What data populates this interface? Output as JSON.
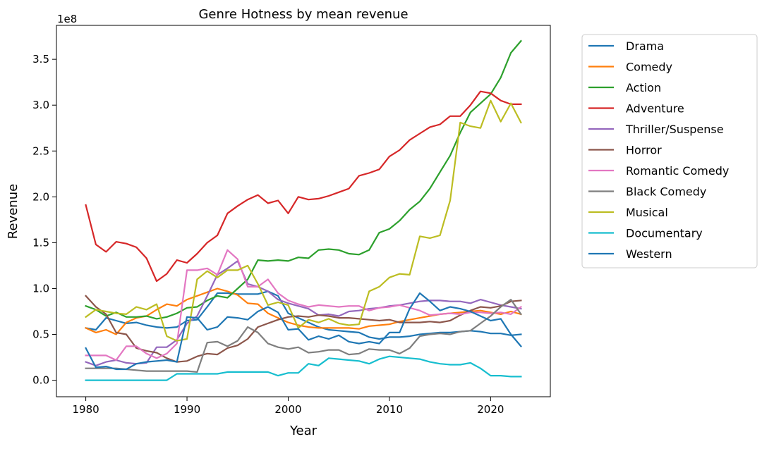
{
  "chart_data": {
    "type": "line",
    "title": "Genre Hotness by mean revenue",
    "xlabel": "Year",
    "ylabel": "Revenue",
    "y_offset_label": "1e8",
    "xlim": [
      1977.1,
      2025.9
    ],
    "ylim": [
      -0.18,
      3.87
    ],
    "x_ticks": [
      1980,
      1990,
      2000,
      2010,
      2020
    ],
    "x_tick_labels": [
      "1980",
      "1990",
      "2000",
      "2010",
      "2020"
    ],
    "y_ticks": [
      0.0,
      0.5,
      1.0,
      1.5,
      2.0,
      2.5,
      3.0,
      3.5
    ],
    "y_tick_labels": [
      "0.0",
      "0.5",
      "1.0",
      "1.5",
      "2.0",
      "2.5",
      "3.0",
      "3.5"
    ],
    "grid": false,
    "legend_position": "outside-right",
    "x": [
      1980,
      1981,
      1982,
      1983,
      1984,
      1985,
      1986,
      1987,
      1988,
      1989,
      1990,
      1991,
      1992,
      1993,
      1994,
      1995,
      1996,
      1997,
      1998,
      1999,
      2000,
      2001,
      2002,
      2003,
      2004,
      2005,
      2006,
      2007,
      2008,
      2009,
      2010,
      2011,
      2012,
      2013,
      2014,
      2015,
      2016,
      2017,
      2018,
      2019,
      2020,
      2021,
      2022,
      2023
    ],
    "series": [
      {
        "name": "Drama",
        "color": "#1f77b4",
        "values": [
          0.57,
          0.55,
          0.68,
          0.65,
          0.62,
          0.63,
          0.6,
          0.58,
          0.57,
          0.58,
          0.65,
          0.66,
          0.8,
          0.95,
          0.95,
          0.94,
          0.94,
          0.94,
          0.97,
          0.92,
          0.73,
          0.68,
          0.63,
          0.58,
          0.55,
          0.54,
          0.53,
          0.52,
          0.47,
          0.45,
          0.47,
          0.47,
          0.48,
          0.5,
          0.51,
          0.52,
          0.52,
          0.53,
          0.54,
          0.53,
          0.51,
          0.51,
          0.49,
          0.5
        ]
      },
      {
        "name": "Comedy",
        "color": "#ff7f0e",
        "values": [
          0.57,
          0.52,
          0.55,
          0.5,
          0.63,
          0.68,
          0.7,
          0.77,
          0.83,
          0.81,
          0.88,
          0.92,
          0.96,
          1.0,
          0.97,
          0.93,
          0.84,
          0.83,
          0.73,
          0.68,
          0.63,
          0.6,
          0.58,
          0.57,
          0.57,
          0.57,
          0.57,
          0.56,
          0.59,
          0.6,
          0.61,
          0.64,
          0.66,
          0.68,
          0.7,
          0.72,
          0.73,
          0.74,
          0.75,
          0.76,
          0.74,
          0.72,
          0.75,
          0.72
        ]
      },
      {
        "name": "Action",
        "color": "#2ca02c",
        "values": [
          0.81,
          0.77,
          0.7,
          0.74,
          0.69,
          0.69,
          0.7,
          0.67,
          0.69,
          0.73,
          0.79,
          0.8,
          0.87,
          0.92,
          0.9,
          1.0,
          1.1,
          1.31,
          1.3,
          1.31,
          1.3,
          1.34,
          1.33,
          1.42,
          1.43,
          1.42,
          1.38,
          1.37,
          1.42,
          1.61,
          1.65,
          1.74,
          1.86,
          1.95,
          2.09,
          2.27,
          2.45,
          2.7,
          2.92,
          3.02,
          3.12,
          3.3,
          3.57,
          3.7
        ]
      },
      {
        "name": "Adventure",
        "color": "#d62728",
        "values": [
          1.91,
          1.48,
          1.4,
          1.51,
          1.49,
          1.45,
          1.33,
          1.08,
          1.16,
          1.31,
          1.28,
          1.38,
          1.5,
          1.58,
          1.82,
          1.9,
          1.97,
          2.02,
          1.93,
          1.96,
          1.82,
          2.0,
          1.97,
          1.98,
          2.01,
          2.05,
          2.09,
          2.23,
          2.26,
          2.3,
          2.44,
          2.51,
          2.62,
          2.69,
          2.76,
          2.79,
          2.88,
          2.88,
          3.0,
          3.15,
          3.13,
          3.05,
          3.01,
          3.01
        ]
      },
      {
        "name": "Thriller/Suspense",
        "color": "#9467bd",
        "values": [
          0.2,
          0.16,
          0.2,
          0.22,
          0.19,
          0.18,
          0.19,
          0.36,
          0.36,
          0.44,
          0.62,
          0.7,
          0.92,
          1.15,
          1.22,
          1.3,
          1.05,
          1.02,
          0.97,
          0.88,
          0.84,
          0.81,
          0.78,
          0.71,
          0.72,
          0.7,
          0.75,
          0.76,
          0.78,
          0.79,
          0.81,
          0.82,
          0.84,
          0.86,
          0.87,
          0.87,
          0.86,
          0.86,
          0.84,
          0.88,
          0.85,
          0.82,
          0.8,
          0.78
        ]
      },
      {
        "name": "Horror",
        "color": "#8c564b",
        "values": [
          0.92,
          0.8,
          0.72,
          0.52,
          0.5,
          0.35,
          0.32,
          0.3,
          0.24,
          0.2,
          0.21,
          0.26,
          0.29,
          0.28,
          0.35,
          0.38,
          0.45,
          0.58,
          0.62,
          0.66,
          0.69,
          0.7,
          0.69,
          0.71,
          0.7,
          0.68,
          0.68,
          0.67,
          0.66,
          0.65,
          0.66,
          0.63,
          0.63,
          0.63,
          0.64,
          0.63,
          0.65,
          0.71,
          0.76,
          0.8,
          0.79,
          0.81,
          0.86,
          0.87
        ]
      },
      {
        "name": "Romantic Comedy",
        "color": "#e377c2",
        "values": [
          0.27,
          0.27,
          0.27,
          0.22,
          0.37,
          0.37,
          0.29,
          0.24,
          0.29,
          0.4,
          1.2,
          1.2,
          1.22,
          1.15,
          1.42,
          1.32,
          1.02,
          1.02,
          1.1,
          0.95,
          0.87,
          0.83,
          0.8,
          0.82,
          0.81,
          0.8,
          0.81,
          0.81,
          0.76,
          0.79,
          0.8,
          0.82,
          0.79,
          0.76,
          0.71,
          0.72,
          0.73,
          0.72,
          0.74,
          0.74,
          0.73,
          0.74,
          0.72,
          0.8
        ]
      },
      {
        "name": "Black Comedy",
        "color": "#7f7f7f",
        "values": [
          0.13,
          0.13,
          0.13,
          0.13,
          0.12,
          0.11,
          0.1,
          0.1,
          0.1,
          0.1,
          0.1,
          0.09,
          0.41,
          0.42,
          0.37,
          0.43,
          0.58,
          0.52,
          0.4,
          0.36,
          0.34,
          0.36,
          0.3,
          0.31,
          0.33,
          0.33,
          0.28,
          0.29,
          0.34,
          0.33,
          0.33,
          0.29,
          0.35,
          0.48,
          0.5,
          0.51,
          0.5,
          0.53,
          0.54,
          0.62,
          0.7,
          0.8,
          0.88,
          0.72
        ]
      },
      {
        "name": "Musical",
        "color": "#bcbd22",
        "values": [
          0.69,
          0.77,
          0.75,
          0.73,
          0.72,
          0.8,
          0.77,
          0.83,
          0.48,
          0.43,
          0.45,
          1.1,
          1.19,
          1.12,
          1.2,
          1.2,
          1.25,
          1.05,
          0.82,
          0.85,
          0.82,
          0.57,
          0.66,
          0.63,
          0.67,
          0.62,
          0.6,
          0.61,
          0.97,
          1.02,
          1.12,
          1.16,
          1.15,
          1.57,
          1.55,
          1.58,
          1.96,
          2.81,
          2.77,
          2.75,
          3.05,
          2.82,
          3.02,
          2.81
        ]
      },
      {
        "name": "Documentary",
        "color": "#17becf",
        "values": [
          0.0,
          0.0,
          0.0,
          0.0,
          0.0,
          0.0,
          0.0,
          0.0,
          0.0,
          0.07,
          0.07,
          0.07,
          0.07,
          0.07,
          0.09,
          0.09,
          0.09,
          0.09,
          0.09,
          0.05,
          0.08,
          0.08,
          0.18,
          0.16,
          0.24,
          0.23,
          0.22,
          0.21,
          0.18,
          0.23,
          0.26,
          0.25,
          0.24,
          0.23,
          0.2,
          0.18,
          0.17,
          0.17,
          0.19,
          0.13,
          0.05,
          0.05,
          0.04,
          0.04
        ]
      },
      {
        "name": "Western",
        "color": "#1f77b4",
        "values": [
          0.35,
          0.14,
          0.15,
          0.12,
          0.12,
          0.18,
          0.2,
          0.21,
          0.22,
          0.2,
          0.69,
          0.68,
          0.55,
          0.58,
          0.69,
          0.68,
          0.66,
          0.75,
          0.8,
          0.74,
          0.55,
          0.56,
          0.44,
          0.48,
          0.45,
          0.49,
          0.42,
          0.4,
          0.42,
          0.4,
          0.52,
          0.52,
          0.78,
          0.95,
          0.86,
          0.76,
          0.8,
          0.78,
          0.75,
          0.7,
          0.65,
          0.67,
          0.5,
          0.37
        ]
      }
    ]
  }
}
